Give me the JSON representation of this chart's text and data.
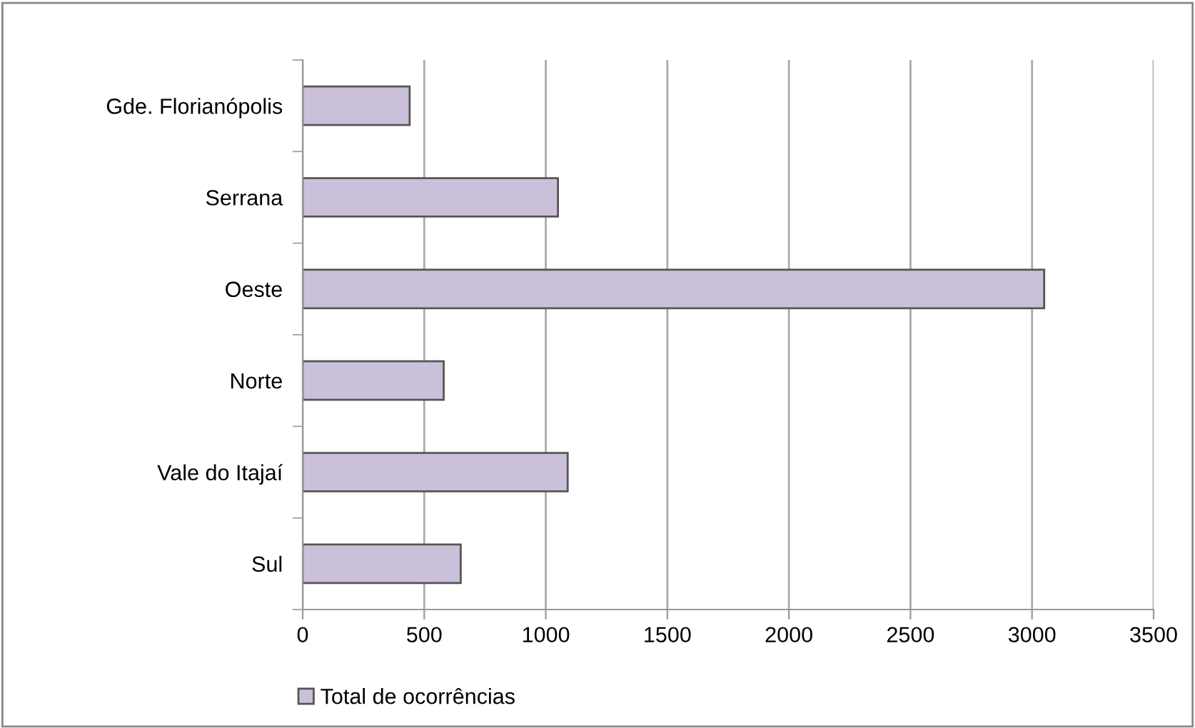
{
  "chart_data": {
    "type": "bar",
    "orientation": "horizontal",
    "categories": [
      "Gde. Florianópolis",
      "Serrana",
      "Oeste",
      "Norte",
      "Vale do Itajaí",
      "Sul"
    ],
    "series": [
      {
        "name": "Total de ocorrências",
        "color": "#cbc0da",
        "values": [
          440,
          1050,
          3050,
          580,
          1090,
          650
        ]
      }
    ],
    "xlim": [
      0,
      3500
    ],
    "xticks": [
      0,
      500,
      1000,
      1500,
      2000,
      2500,
      3000,
      3500
    ],
    "grid": "x",
    "legend": "bottom"
  }
}
